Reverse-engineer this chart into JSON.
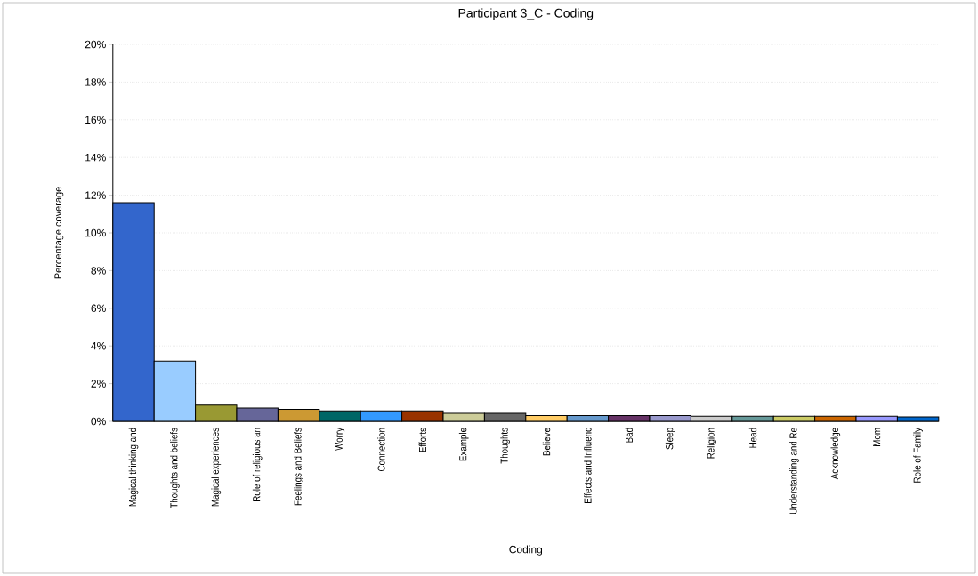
{
  "chart_data": {
    "type": "bar",
    "title": "Participant 3_C - Coding",
    "xlabel": "Coding",
    "ylabel": "Percentage coverage",
    "categories": [
      "Magical thinking and",
      "Thoughts and beliefs",
      "Magical experiences",
      "Role of religious an",
      "Feelings and Beliefs",
      "Worry",
      "Connection",
      "Efforts",
      "Example",
      "Thoughts",
      "Believe",
      "Effects and Influenc",
      "Bad",
      "Sleep",
      "Religion",
      "Head",
      "Understanding and Re",
      "Acknowledge",
      "Mom",
      "Role of Family"
    ],
    "values": [
      11.6,
      3.2,
      0.86,
      0.71,
      0.64,
      0.55,
      0.55,
      0.55,
      0.43,
      0.43,
      0.31,
      0.31,
      0.31,
      0.31,
      0.27,
      0.27,
      0.27,
      0.27,
      0.27,
      0.24
    ],
    "colors": [
      "#3366cc",
      "#99ccff",
      "#999933",
      "#666699",
      "#cc9933",
      "#006666",
      "#3399ff",
      "#993300",
      "#cccc99",
      "#666666",
      "#ffcc66",
      "#6699cc",
      "#663366",
      "#9999cc",
      "#cccccc",
      "#669999",
      "#cccc66",
      "#cc6600",
      "#9999ff",
      "#0066cc"
    ],
    "ylim": [
      0,
      20
    ],
    "yticks": [
      {
        "value": 0,
        "label": "0%"
      },
      {
        "value": 2,
        "label": "2%"
      },
      {
        "value": 4,
        "label": "4%"
      },
      {
        "value": 6,
        "label": "6%"
      },
      {
        "value": 8,
        "label": "8%"
      },
      {
        "value": 10,
        "label": "10%"
      },
      {
        "value": 12,
        "label": "12%"
      },
      {
        "value": 14,
        "label": "14%"
      },
      {
        "value": 16,
        "label": "16%"
      },
      {
        "value": 18,
        "label": "18%"
      },
      {
        "value": 20,
        "label": "20%"
      }
    ],
    "grid": "y"
  }
}
